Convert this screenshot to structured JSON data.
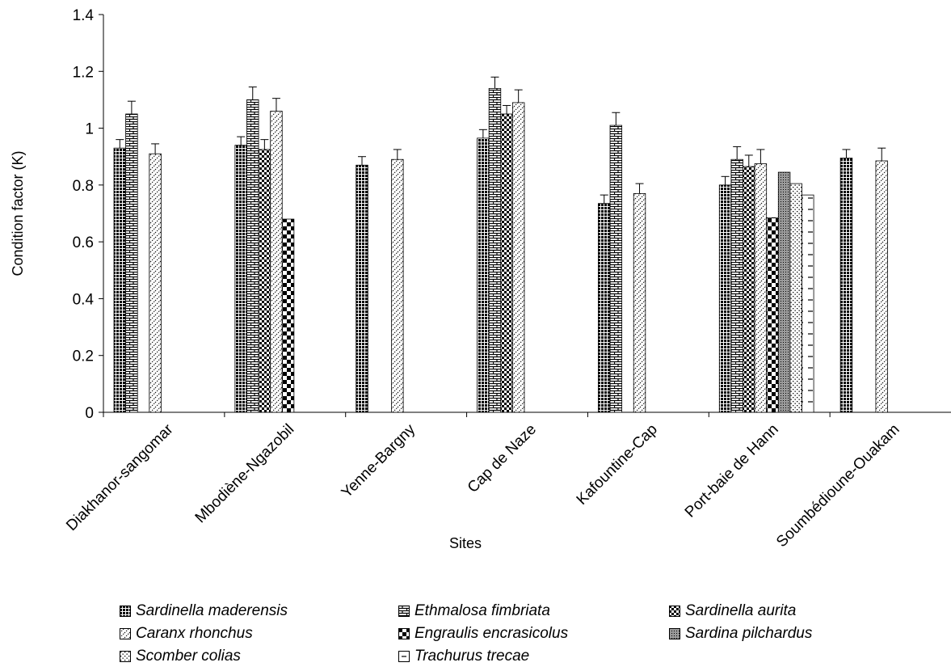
{
  "chart_data": {
    "type": "bar",
    "title": "",
    "xlabel": "Sites",
    "ylabel": "Condition factor (K)",
    "ylim": [
      0,
      1.4
    ],
    "yticks": [
      "0",
      "0.2",
      "0.4",
      "0.6",
      "0.8",
      "1",
      "1.2",
      "1.4"
    ],
    "grid": false,
    "legend_position": "bottom",
    "categories": [
      "Diakhanor-sangomar",
      "Mbodiène-Ngazobil",
      "Yenne-Bargny",
      "Cap de Naze",
      "Kafountine-Cap",
      "Port-baie de Hann",
      "Soumbédioune-Ouakam"
    ],
    "series": [
      {
        "name": "Sardinella maderensis",
        "values": [
          0.93,
          0.94,
          0.87,
          0.965,
          0.735,
          0.8,
          0.895
        ],
        "errors": [
          0.03,
          0.03,
          0.03,
          0.03,
          0.03,
          0.03,
          0.03
        ]
      },
      {
        "name": "Ethmalosa fimbriata",
        "values": [
          1.05,
          1.1,
          null,
          1.14,
          1.01,
          0.89,
          null
        ],
        "errors": [
          0.045,
          0.045,
          null,
          0.04,
          0.045,
          0.045,
          null
        ]
      },
      {
        "name": "Sardinella aurita",
        "values": [
          null,
          0.925,
          null,
          1.05,
          null,
          0.865,
          null
        ],
        "errors": [
          null,
          0.035,
          null,
          0.03,
          null,
          0.04,
          null
        ]
      },
      {
        "name": "Caranx rhonchus",
        "values": [
          0.91,
          1.06,
          0.89,
          1.09,
          0.77,
          0.875,
          0.885
        ],
        "errors": [
          0.035,
          0.045,
          0.035,
          0.045,
          0.035,
          0.05,
          0.045
        ]
      },
      {
        "name": "Engraulis encrasicolus",
        "values": [
          null,
          0.68,
          null,
          null,
          null,
          0.685,
          null
        ],
        "errors": [
          null,
          null,
          null,
          null,
          null,
          null,
          null
        ]
      },
      {
        "name": "Sardina pilchardus",
        "values": [
          null,
          null,
          null,
          null,
          null,
          0.845,
          null
        ],
        "errors": [
          null,
          null,
          null,
          null,
          null,
          null,
          null
        ]
      },
      {
        "name": "Scomber colias",
        "values": [
          null,
          null,
          null,
          null,
          null,
          0.805,
          null
        ],
        "errors": [
          null,
          null,
          null,
          null,
          null,
          null,
          null
        ]
      },
      {
        "name": "Trachurus trecae",
        "values": [
          null,
          null,
          null,
          null,
          null,
          0.765,
          null
        ],
        "errors": [
          null,
          null,
          null,
          null,
          null,
          null,
          null
        ]
      }
    ],
    "patterns": [
      "dense-grid",
      "horizontal-bricks",
      "small-checker",
      "diagonal-dots",
      "large-checker",
      "fine-dots",
      "sparse-dots",
      "dashes"
    ]
  }
}
